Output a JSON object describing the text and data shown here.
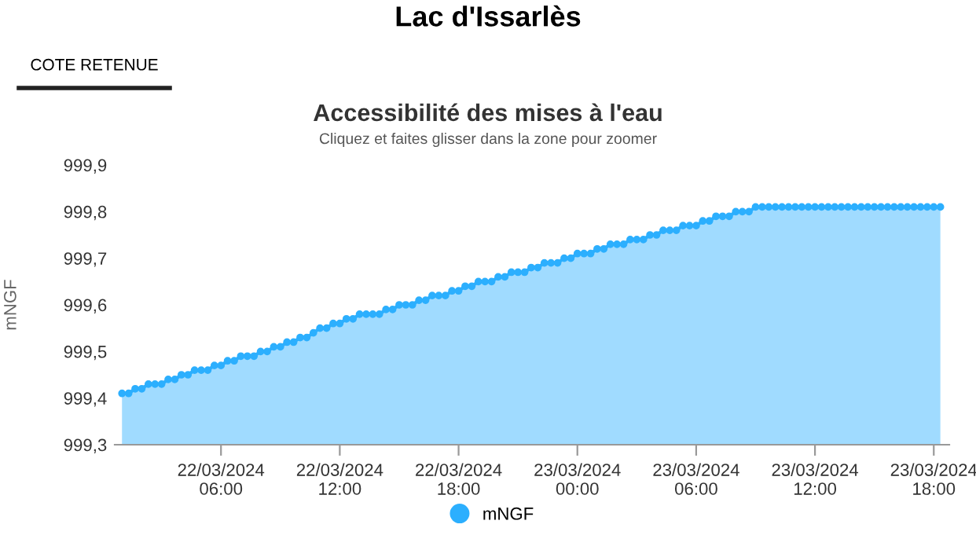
{
  "chart_data": {
    "type": "area",
    "title": "Accessibilité des mises à l'eau",
    "subtitle": "Cliquez et faites glisser dans la zone pour zoomer",
    "ylabel": "mNGF",
    "annotations": [
      "Lac d'Issarlès",
      "COTE RETENUE"
    ],
    "x": [
      "2024-03-22T01:00",
      "2024-03-22T01:20",
      "2024-03-22T01:40",
      "2024-03-22T02:00",
      "2024-03-22T02:20",
      "2024-03-22T02:40",
      "2024-03-22T03:00",
      "2024-03-22T03:20",
      "2024-03-22T03:40",
      "2024-03-22T04:00",
      "2024-03-22T04:20",
      "2024-03-22T04:40",
      "2024-03-22T05:00",
      "2024-03-22T05:20",
      "2024-03-22T05:40",
      "2024-03-22T06:00",
      "2024-03-22T06:20",
      "2024-03-22T06:40",
      "2024-03-22T07:00",
      "2024-03-22T07:20",
      "2024-03-22T07:40",
      "2024-03-22T08:00",
      "2024-03-22T08:20",
      "2024-03-22T08:40",
      "2024-03-22T09:00",
      "2024-03-22T09:20",
      "2024-03-22T09:40",
      "2024-03-22T10:00",
      "2024-03-22T10:20",
      "2024-03-22T10:40",
      "2024-03-22T11:00",
      "2024-03-22T11:20",
      "2024-03-22T11:40",
      "2024-03-22T12:00",
      "2024-03-22T12:20",
      "2024-03-22T12:40",
      "2024-03-22T13:00",
      "2024-03-22T13:20",
      "2024-03-22T13:40",
      "2024-03-22T14:00",
      "2024-03-22T14:20",
      "2024-03-22T14:40",
      "2024-03-22T15:00",
      "2024-03-22T15:20",
      "2024-03-22T15:40",
      "2024-03-22T16:00",
      "2024-03-22T16:20",
      "2024-03-22T16:40",
      "2024-03-22T17:00",
      "2024-03-22T17:20",
      "2024-03-22T17:40",
      "2024-03-22T18:00",
      "2024-03-22T18:20",
      "2024-03-22T18:40",
      "2024-03-22T19:00",
      "2024-03-22T19:20",
      "2024-03-22T19:40",
      "2024-03-22T20:00",
      "2024-03-22T20:20",
      "2024-03-22T20:40",
      "2024-03-22T21:00",
      "2024-03-22T21:20",
      "2024-03-22T21:40",
      "2024-03-22T22:00",
      "2024-03-22T22:20",
      "2024-03-22T22:40",
      "2024-03-22T23:00",
      "2024-03-22T23:20",
      "2024-03-22T23:40",
      "2024-03-23T00:00",
      "2024-03-23T00:20",
      "2024-03-23T00:40",
      "2024-03-23T01:00",
      "2024-03-23T01:20",
      "2024-03-23T01:40",
      "2024-03-23T02:00",
      "2024-03-23T02:20",
      "2024-03-23T02:40",
      "2024-03-23T03:00",
      "2024-03-23T03:20",
      "2024-03-23T03:40",
      "2024-03-23T04:00",
      "2024-03-23T04:20",
      "2024-03-23T04:40",
      "2024-03-23T05:00",
      "2024-03-23T05:20",
      "2024-03-23T05:40",
      "2024-03-23T06:00",
      "2024-03-23T06:20",
      "2024-03-23T06:40",
      "2024-03-23T07:00",
      "2024-03-23T07:20",
      "2024-03-23T07:40",
      "2024-03-23T08:00",
      "2024-03-23T08:20",
      "2024-03-23T08:40",
      "2024-03-23T09:00",
      "2024-03-23T09:20",
      "2024-03-23T09:40",
      "2024-03-23T10:00",
      "2024-03-23T10:20",
      "2024-03-23T10:40",
      "2024-03-23T11:00",
      "2024-03-23T11:20",
      "2024-03-23T11:40",
      "2024-03-23T12:00",
      "2024-03-23T12:20",
      "2024-03-23T12:40",
      "2024-03-23T13:00",
      "2024-03-23T13:20",
      "2024-03-23T13:40",
      "2024-03-23T14:00",
      "2024-03-23T14:20",
      "2024-03-23T14:40",
      "2024-03-23T15:00",
      "2024-03-23T15:20",
      "2024-03-23T15:40",
      "2024-03-23T16:00",
      "2024-03-23T16:20",
      "2024-03-23T16:40",
      "2024-03-23T17:00",
      "2024-03-23T17:20",
      "2024-03-23T17:40",
      "2024-03-23T18:00",
      "2024-03-23T18:20"
    ],
    "series": [
      {
        "name": "mNGF",
        "color": "#2caffe",
        "values": [
          999.41,
          999.41,
          999.42,
          999.42,
          999.43,
          999.43,
          999.43,
          999.44,
          999.44,
          999.45,
          999.45,
          999.46,
          999.46,
          999.46,
          999.47,
          999.47,
          999.48,
          999.48,
          999.49,
          999.49,
          999.49,
          999.5,
          999.5,
          999.51,
          999.51,
          999.52,
          999.52,
          999.53,
          999.53,
          999.54,
          999.55,
          999.55,
          999.56,
          999.56,
          999.57,
          999.57,
          999.58,
          999.58,
          999.58,
          999.58,
          999.59,
          999.59,
          999.6,
          999.6,
          999.6,
          999.61,
          999.61,
          999.62,
          999.62,
          999.62,
          999.63,
          999.63,
          999.64,
          999.64,
          999.65,
          999.65,
          999.65,
          999.66,
          999.66,
          999.67,
          999.67,
          999.67,
          999.68,
          999.68,
          999.69,
          999.69,
          999.69,
          999.7,
          999.7,
          999.71,
          999.71,
          999.71,
          999.72,
          999.72,
          999.73,
          999.73,
          999.73,
          999.74,
          999.74,
          999.74,
          999.75,
          999.75,
          999.76,
          999.76,
          999.76,
          999.77,
          999.77,
          999.77,
          999.78,
          999.78,
          999.79,
          999.79,
          999.79,
          999.8,
          999.8,
          999.8,
          999.81,
          999.81,
          999.81,
          999.81,
          999.81,
          999.81,
          999.81,
          999.81,
          999.81,
          999.81,
          999.81,
          999.81,
          999.81,
          999.81,
          999.81,
          999.81,
          999.81,
          999.81,
          999.81,
          999.81,
          999.81,
          999.81,
          999.81,
          999.81,
          999.81,
          999.81,
          999.81,
          999.81,
          999.81
        ]
      }
    ],
    "xlim": [
      "2024-03-22T00:38",
      "2024-03-23T18:47"
    ],
    "xticks": [
      {
        "value": "2024-03-22T06:00",
        "label": "22/03/2024\n06:00"
      },
      {
        "value": "2024-03-22T12:00",
        "label": "22/03/2024\n12:00"
      },
      {
        "value": "2024-03-22T18:00",
        "label": "22/03/2024\n18:00"
      },
      {
        "value": "2024-03-23T00:00",
        "label": "23/03/2024\n00:00"
      },
      {
        "value": "2024-03-23T06:00",
        "label": "23/03/2024\n06:00"
      },
      {
        "value": "2024-03-23T12:00",
        "label": "23/03/2024\n12:00"
      },
      {
        "value": "2024-03-23T18:00",
        "label": "23/03/2024\n18:00"
      }
    ],
    "ylim": [
      999.3,
      999.9
    ],
    "yticks": [
      {
        "value": 999.3,
        "label": "999,3"
      },
      {
        "value": 999.4,
        "label": "999,4"
      },
      {
        "value": 999.5,
        "label": "999,5"
      },
      {
        "value": 999.6,
        "label": "999,6"
      },
      {
        "value": 999.7,
        "label": "999,7"
      },
      {
        "value": 999.8,
        "label": "999,8"
      },
      {
        "value": 999.9,
        "label": "999,9"
      }
    ],
    "marker": "circle",
    "legend": "bottom"
  }
}
